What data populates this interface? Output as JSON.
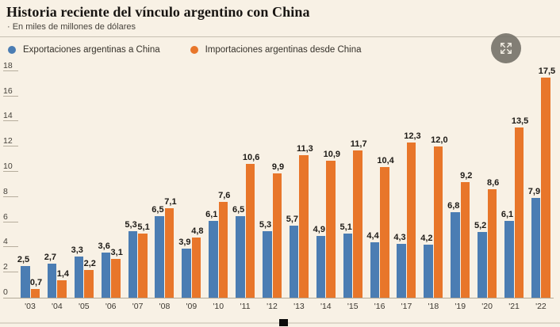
{
  "header": {
    "title": "Historia reciente del vínculo argentino con China",
    "subtitle": "· En miles de millones de dólares"
  },
  "colors": {
    "background": "#f8f1e5",
    "exports_blue": "#4b7db3",
    "imports_orange": "#e8762a",
    "axis_text": "#45413a",
    "value_label": "#1d1a16"
  },
  "icons": {
    "expand_icon": "expand-arrows"
  },
  "chart_data": {
    "type": "bar",
    "title": "Historia reciente del vínculo argentino con China",
    "subtitle": "En miles de millones de dólares",
    "categories": [
      "'03",
      "'04",
      "'05",
      "'06",
      "'07",
      "'08",
      "'09",
      "'10",
      "'11",
      "'12",
      "'13",
      "'14",
      "'15",
      "'16",
      "'17",
      "'18",
      "'19",
      "'20",
      "'21",
      "'22"
    ],
    "series": [
      {
        "name": "Exportaciones argentinas a China",
        "color": "#4b7db3",
        "values": [
          2.5,
          2.7,
          3.3,
          3.6,
          5.3,
          6.5,
          3.9,
          6.1,
          6.5,
          5.3,
          5.7,
          4.9,
          5.1,
          4.4,
          4.3,
          4.2,
          6.8,
          5.2,
          6.1,
          7.9
        ]
      },
      {
        "name": "Importaciones argentinas desde China",
        "color": "#e8762a",
        "values": [
          0.7,
          1.4,
          2.2,
          3.1,
          5.1,
          7.1,
          4.8,
          7.6,
          10.6,
          9.9,
          11.3,
          10.9,
          11.7,
          10.4,
          12.3,
          12.0,
          9.2,
          8.6,
          13.5,
          17.5
        ]
      }
    ],
    "y_ticks": [
      0,
      2,
      4,
      6,
      8,
      10,
      12,
      14,
      16,
      18
    ],
    "ylim": [
      0,
      18
    ],
    "decimal_separator": ",",
    "grid": "short-left-ticks-only",
    "legend_position": "top-left",
    "value_labels": "above-bars"
  }
}
